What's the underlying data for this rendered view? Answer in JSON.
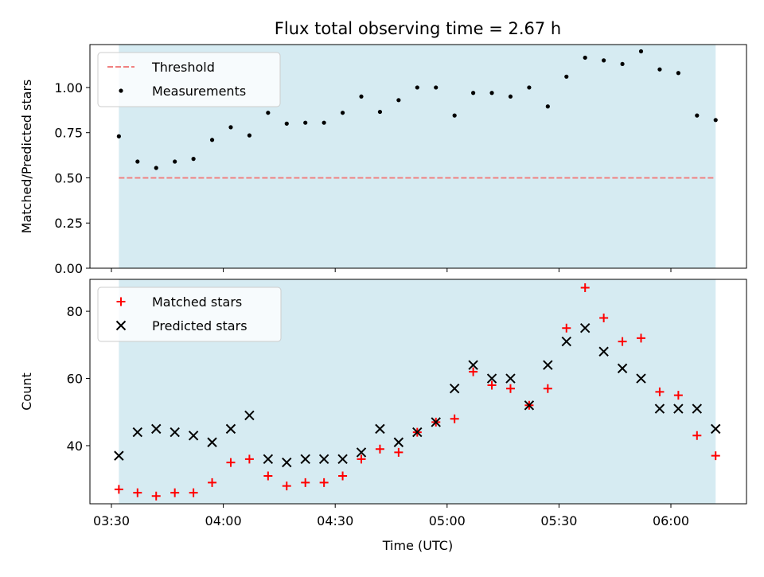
{
  "chart_data": {
    "type": "scatter",
    "title": "Flux total observing time = 2.67 h",
    "xlabel": "Time (UTC)",
    "x_tick_labels": [
      "03:30",
      "04:00",
      "04:30",
      "05:00",
      "05:30",
      "06:00"
    ],
    "shaded_region": {
      "from": "03:32",
      "to": "06:12",
      "color": "#add8e6"
    },
    "top": {
      "ylabel": "Matched/Predicted stars",
      "ylim": [
        0.0,
        1.2375
      ],
      "y_ticks": [
        0.0,
        0.25,
        0.5,
        0.75,
        1.0
      ],
      "y_tick_labels": [
        "0.00",
        "0.25",
        "0.50",
        "0.75",
        "1.00"
      ],
      "legend": {
        "placement": "upper left",
        "entries": [
          "Threshold",
          "Measurements"
        ]
      },
      "threshold": {
        "name": "Threshold",
        "value": 0.5,
        "color": "#f08080",
        "style": "dashed"
      },
      "measurements": {
        "name": "Measurements",
        "color": "#000000",
        "x": [
          "03:32",
          "03:37",
          "03:42",
          "03:47",
          "03:52",
          "03:57",
          "04:02",
          "04:07",
          "04:12",
          "04:17",
          "04:22",
          "04:27",
          "04:32",
          "04:37",
          "04:42",
          "04:47",
          "04:52",
          "04:57",
          "05:02",
          "05:07",
          "05:12",
          "05:17",
          "05:22",
          "05:27",
          "05:32",
          "05:37",
          "05:42",
          "05:47",
          "05:52",
          "05:57",
          "06:02",
          "06:07",
          "06:12"
        ],
        "y": [
          0.73,
          0.59,
          0.555,
          0.59,
          0.605,
          0.71,
          0.78,
          0.735,
          0.86,
          0.8,
          0.805,
          0.805,
          0.86,
          0.95,
          0.865,
          0.93,
          1.0,
          1.0,
          0.845,
          0.97,
          0.97,
          0.95,
          1.0,
          0.895,
          1.06,
          1.165,
          1.15,
          1.13,
          1.2,
          1.1,
          1.08,
          0.845,
          0.82
        ]
      }
    },
    "bottom": {
      "ylabel": "Count",
      "ylim": [
        22.7,
        89.5
      ],
      "y_ticks": [
        40,
        60,
        80
      ],
      "y_tick_labels": [
        "40",
        "60",
        "80"
      ],
      "legend": {
        "placement": "upper left",
        "entries": [
          "Matched stars",
          "Predicted stars"
        ]
      },
      "series": [
        {
          "name": "Matched stars",
          "marker": "plus",
          "color": "#ff0000",
          "x": [
            "03:32",
            "03:37",
            "03:42",
            "03:47",
            "03:52",
            "03:57",
            "04:02",
            "04:07",
            "04:12",
            "04:17",
            "04:22",
            "04:27",
            "04:32",
            "04:37",
            "04:42",
            "04:47",
            "04:52",
            "04:57",
            "05:02",
            "05:07",
            "05:12",
            "05:17",
            "05:22",
            "05:27",
            "05:32",
            "05:37",
            "05:42",
            "05:47",
            "05:52",
            "05:57",
            "06:02",
            "06:07",
            "06:12"
          ],
          "values": [
            27,
            26,
            25,
            26,
            26,
            29,
            35,
            36,
            31,
            28,
            29,
            29,
            31,
            36,
            39,
            38,
            44,
            47,
            48,
            62,
            58,
            57,
            52,
            57,
            75,
            87,
            78,
            71,
            72,
            56,
            55,
            43,
            37
          ]
        },
        {
          "name": "Predicted stars",
          "marker": "x",
          "color": "#000000",
          "x": [
            "03:32",
            "03:37",
            "03:42",
            "03:47",
            "03:52",
            "03:57",
            "04:02",
            "04:07",
            "04:12",
            "04:17",
            "04:22",
            "04:27",
            "04:32",
            "04:37",
            "04:42",
            "04:47",
            "04:52",
            "04:57",
            "05:02",
            "05:07",
            "05:12",
            "05:17",
            "05:22",
            "05:27",
            "05:32",
            "05:37",
            "05:42",
            "05:47",
            "05:52",
            "05:57",
            "06:02",
            "06:07",
            "06:12"
          ],
          "values": [
            37,
            44,
            45,
            44,
            43,
            41,
            45,
            49,
            36,
            35,
            36,
            36,
            36,
            38,
            45,
            41,
            44,
            47,
            57,
            64,
            60,
            60,
            52,
            64,
            71,
            75,
            68,
            63,
            60,
            51,
            51,
            51,
            45
          ]
        }
      ]
    }
  }
}
